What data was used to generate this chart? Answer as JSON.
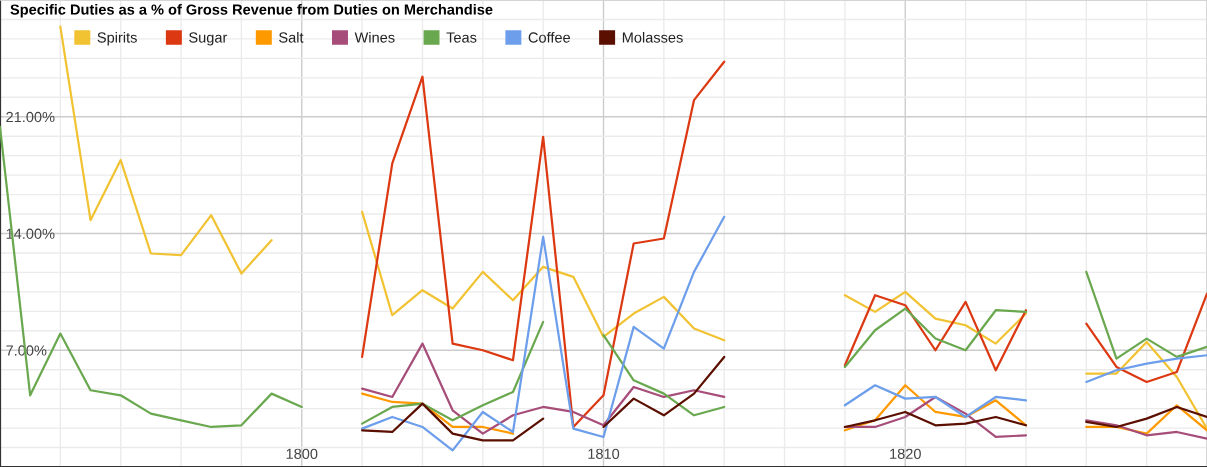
{
  "chart_data": {
    "type": "line",
    "title": "Specific Duties as a % of Gross Revenue from Duties on Merchandise",
    "x": [
      1790,
      1791,
      1792,
      1793,
      1794,
      1795,
      1796,
      1797,
      1798,
      1799,
      1800,
      1801,
      1802,
      1803,
      1804,
      1805,
      1806,
      1807,
      1808,
      1809,
      1810,
      1811,
      1812,
      1813,
      1814,
      1815,
      1816,
      1817,
      1818,
      1819,
      1820,
      1821,
      1822,
      1823,
      1824,
      1825,
      1826,
      1827,
      1828,
      1829,
      1830
    ],
    "xlim": [
      1790,
      1830
    ],
    "xticks": [
      1800,
      1810,
      1820
    ],
    "ylim": [
      0,
      28
    ],
    "yticks": [
      {
        "value": 7,
        "label": "7.00%"
      },
      {
        "value": 14,
        "label": "14.00%"
      },
      {
        "value": 21,
        "label": "21.00%"
      }
    ],
    "grid": true,
    "legend": "top left",
    "line_style": "solid",
    "series": [
      {
        "name": "Spirits",
        "color": "#f1c232",
        "values": [
          null,
          null,
          26.4,
          14.8,
          18.4,
          12.8,
          12.7,
          15.1,
          11.6,
          13.6,
          null,
          null,
          15.3,
          9.1,
          10.6,
          9.5,
          11.7,
          10.0,
          12.0,
          11.4,
          7.8,
          9.2,
          10.2,
          8.3,
          7.6,
          null,
          null,
          null,
          10.3,
          9.3,
          10.5,
          8.9,
          8.5,
          7.4,
          9.2,
          null,
          5.6,
          5.6,
          7.5,
          5.4,
          2.3
        ]
      },
      {
        "name": "Sugar",
        "color": "#dc3912",
        "values": [
          null,
          null,
          null,
          null,
          null,
          null,
          null,
          null,
          null,
          null,
          null,
          null,
          6.6,
          18.2,
          23.4,
          7.4,
          7.0,
          6.4,
          19.8,
          2.4,
          4.3,
          13.4,
          13.7,
          22.0,
          24.3,
          null,
          null,
          null,
          6.1,
          10.3,
          9.7,
          7.0,
          9.9,
          5.8,
          9.4,
          null,
          8.6,
          6.0,
          5.1,
          5.7,
          10.4
        ]
      },
      {
        "name": "Salt",
        "color": "#ff9900",
        "values": [
          null,
          null,
          null,
          null,
          null,
          null,
          null,
          null,
          null,
          null,
          null,
          null,
          4.4,
          3.9,
          3.8,
          2.4,
          2.4,
          2.0,
          null,
          null,
          null,
          null,
          null,
          null,
          null,
          null,
          null,
          null,
          2.2,
          2.8,
          4.9,
          3.3,
          3.0,
          4.0,
          2.5,
          null,
          2.4,
          2.4,
          2.0,
          3.7,
          2.2
        ]
      },
      {
        "name": "Wines",
        "color": "#a64d79",
        "values": [
          null,
          null,
          null,
          null,
          null,
          null,
          null,
          null,
          null,
          null,
          null,
          null,
          4.7,
          4.2,
          7.4,
          3.4,
          2.0,
          3.1,
          3.6,
          3.3,
          2.5,
          4.8,
          4.2,
          4.6,
          4.2,
          null,
          null,
          null,
          2.4,
          2.4,
          3.0,
          4.2,
          3.2,
          1.8,
          1.9,
          null,
          2.8,
          2.5,
          1.9,
          2.1,
          1.7
        ]
      },
      {
        "name": "Teas",
        "color": "#6aa84f",
        "values": [
          20.4,
          4.3,
          8.0,
          4.6,
          4.3,
          3.2,
          2.8,
          2.4,
          2.5,
          4.4,
          3.6,
          null,
          2.6,
          3.6,
          3.8,
          2.8,
          3.7,
          4.5,
          8.7,
          null,
          7.9,
          5.2,
          4.4,
          3.1,
          3.6,
          null,
          null,
          null,
          6.0,
          8.2,
          9.5,
          7.7,
          7.0,
          9.4,
          9.3,
          null,
          11.7,
          6.5,
          7.7,
          6.6,
          7.2
        ]
      },
      {
        "name": "Coffee",
        "color": "#6d9eeb",
        "values": [
          null,
          null,
          null,
          null,
          null,
          null,
          null,
          null,
          null,
          null,
          null,
          null,
          2.3,
          3.0,
          2.4,
          1.0,
          3.3,
          2.1,
          13.8,
          2.3,
          1.8,
          8.4,
          7.1,
          11.7,
          15.0,
          null,
          null,
          null,
          3.7,
          4.9,
          4.1,
          4.2,
          3.0,
          4.2,
          4.0,
          null,
          5.1,
          5.8,
          6.2,
          6.5,
          6.7
        ]
      },
      {
        "name": "Molasses",
        "color": "#5b0f00",
        "values": [
          null,
          null,
          null,
          null,
          null,
          null,
          null,
          null,
          null,
          null,
          null,
          null,
          2.2,
          2.1,
          3.8,
          2.0,
          1.6,
          1.6,
          2.9,
          null,
          2.4,
          4.1,
          3.1,
          4.4,
          6.6,
          null,
          null,
          null,
          2.4,
          2.8,
          3.3,
          2.5,
          2.6,
          3.0,
          2.5,
          null,
          2.7,
          2.4,
          2.9,
          3.6,
          3.0
        ]
      }
    ]
  }
}
